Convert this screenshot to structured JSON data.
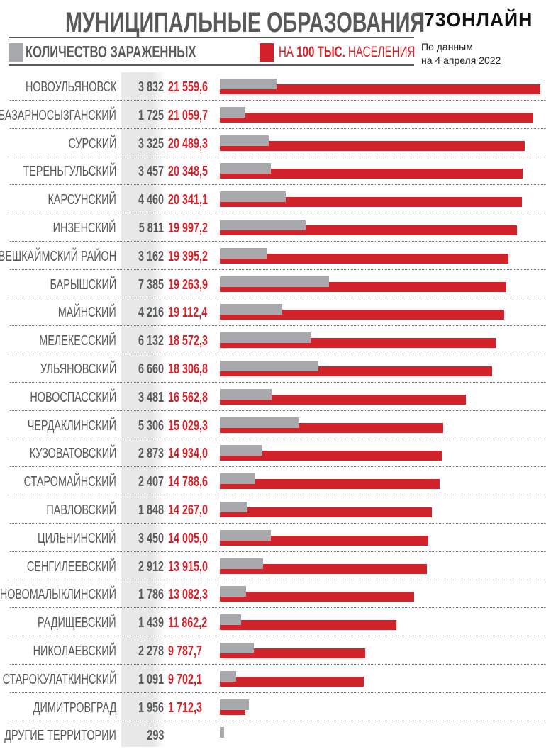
{
  "header": {
    "title": "МУНИЦИПАЛЬНЫЕ ОБРАЗОВАНИЯ",
    "logo": "73ОНЛАЙН",
    "date_line1": "По данным",
    "date_line2": "на 4 апреля 2022"
  },
  "colors": {
    "gray": "#a7a9ac",
    "red": "#d2232a",
    "text": "#58595b"
  },
  "chart_data": {
    "type": "bar",
    "title": "МУНИЦИПАЛЬНЫЕ ОБРАЗОВАНИЯ",
    "legend": [
      {
        "name": "КОЛИЧЕСТВО ЗАРАЖЕННЫХ",
        "color": "#a7a9ac"
      },
      {
        "name_pre": "НА ",
        "name_bold": "100 ТЫС.",
        "name_post": " НАСЕЛЕНИЯ",
        "color": "#d2232a"
      }
    ],
    "categories": [
      "НОВОУЛЬЯНОВСК",
      "БАЗАРНОСЫЗГАНСКИЙ",
      "СУРСКИЙ",
      "ТЕРЕНЬГУЛЬСКИЙ",
      "КАРСУНСКИЙ",
      "ИНЗЕНСКИЙ",
      "ВЕШКАЙМСКИЙ РАЙОН",
      "БАРЫШСКИЙ",
      "МАЙНСКИЙ",
      "МЕЛЕКЕССКИЙ",
      "УЛЬЯНОВСКИЙ",
      "НОВОСПАССКИЙ",
      "ЧЕРДАКЛИНСКИЙ",
      "КУЗОВАТОВСКИЙ",
      "СТАРОМАЙНСКИЙ",
      "ПАВЛОВСКИЙ",
      "ЦИЛЬНИНСКИЙ",
      "СЕНГИЛЕЕВСКИЙ",
      "НОВОМАЛЫКЛИНСКИЙ",
      "РАДИЩЕВСКИЙ",
      "НИКОЛАЕВСКИЙ",
      "СТАРОКУЛАТКИНСКИЙ",
      "ДИМИТРОВГРАД",
      "ДРУГИЕ ТЕРРИТОРИИ"
    ],
    "series": [
      {
        "name": "infected",
        "values": [
          3832,
          1725,
          3325,
          3457,
          4460,
          5811,
          3162,
          7385,
          4216,
          6132,
          6660,
          3481,
          5306,
          2873,
          2407,
          1848,
          3450,
          2912,
          1786,
          1439,
          2278,
          1091,
          1956,
          293
        ],
        "labels": [
          "3 832",
          "1 725",
          "3 325",
          "3 457",
          "4 460",
          "5 811",
          "3 162",
          "7 385",
          "4 216",
          "6 132",
          "6 660",
          "3 481",
          "5 306",
          "2 873",
          "2 407",
          "1 848",
          "3 450",
          "2 912",
          "1 786",
          "1 439",
          "2 278",
          "1 091",
          "1 956",
          "293"
        ]
      },
      {
        "name": "per_100k",
        "values": [
          21559.6,
          21059.7,
          20489.3,
          20348.5,
          20341.1,
          19997.2,
          19395.2,
          19263.9,
          19112.4,
          18572.3,
          18306.8,
          16562.8,
          15029.3,
          14934.0,
          14788.6,
          14267.0,
          14005.0,
          13915.0,
          13082.3,
          11862.2,
          9787.7,
          9702.1,
          1712.3,
          null
        ],
        "labels": [
          "21 559,6",
          "21 059,7",
          "20 489,3",
          "20 348,5",
          "20 341,1",
          "19 997,2",
          "19 395,2",
          "19 263,9",
          "19 112,4",
          "18 572,3",
          "18 306,8",
          "16 562,8",
          "15 029,3",
          "14 934,0",
          "14 788,6",
          "14 267,0",
          "14 005,0",
          "13 915,0",
          "13 082,3",
          "11 862,2",
          "9 787,7",
          "9 702,1",
          "1 712,3",
          ""
        ]
      }
    ]
  }
}
